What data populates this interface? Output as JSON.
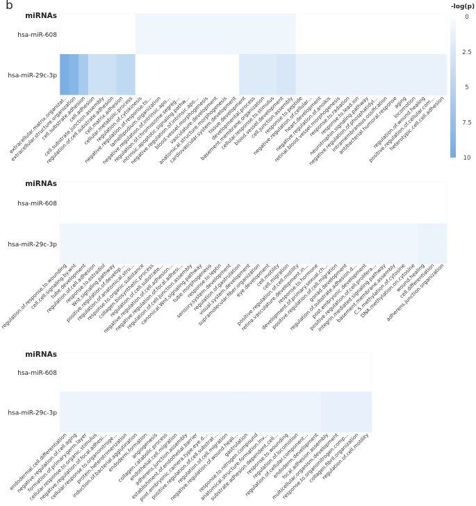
{
  "panel_label": "b",
  "colors": {
    "low": "#f3f8fd",
    "high": "#74abe2",
    "zero": "#ffffff"
  },
  "chart_data": [
    {
      "type": "heatmap",
      "row_header": "miRNAs",
      "rows": [
        "hsa-miR-608",
        "hsa-miR-29c-3p"
      ],
      "colorbar": {
        "title": "-log(p)",
        "ticks": [
          "0",
          "2.5",
          "5",
          "7.5",
          "10"
        ],
        "range": [
          0,
          10
        ]
      },
      "categories": [
        "extracellular.matrix.organizat..",
        "extracellular.structure.organization",
        "cell.substrate.adhesion",
        "cell.adhesion",
        "cell.substrate.junction.assembly",
        "regulation.of.cell.substrate.adhesion",
        "cell.matrix.adhesion",
        "cellular.metabolic.process",
        "regulation.of.cytokinesis",
        "negative.regulation.of.response.to...",
        "lamellipodium.organization",
        "negative.regulation.of.intrinsic.apo...",
        "regulation.of.chromosome.segreg...",
        "intrinsic.apoptotic.signaling.pathw...",
        "negative.regulation.of.intrinsic.apo...",
        "blood.vessel.morphogenesis",
        "vasculature.development",
        "anatomical.structure.morphogenesis",
        "cardiovascular.system.development",
        "tissue.development",
        "developmental.process",
        "basement.membrane.organization",
        "cellular.response.to.stimulus",
        "blood.vessel.development",
        "cell.junction.assembly",
        "response.to.peptide",
        "negative.regulation.of.cellular...",
        "heart.development",
        "negative.regulation.of.anoikis",
        "retinal.blood.vessel.morphogenesis",
        "response.to.radiation",
        "response.to.lead.ion",
        "neurotrophin.signaling.pathway",
        "negative.regulation.of.phosphatidyl...",
        "intramembranous.ossification",
        "antibacterial.humoral.response",
        "aging",
        "locomotion",
        "regulation.of.wound.healing",
        "positive.regulation.of.cellular.com...",
        "heterotypic.cell.cell.adhesion"
      ],
      "values": [
        [
          0,
          0,
          0,
          0,
          0,
          0,
          0,
          0,
          0.3,
          0.3,
          0.3,
          0.3,
          0.3,
          0.3,
          0.3,
          0.3,
          0.3,
          0.3,
          0.3,
          0.3,
          0.3,
          0.3,
          0.3,
          0.3,
          0.3,
          0,
          0,
          0,
          0,
          0,
          0,
          0,
          0,
          0,
          0,
          0,
          0,
          0,
          0,
          0,
          0
        ],
        [
          9.5,
          8.5,
          6,
          3,
          3,
          3,
          4,
          4,
          0,
          0,
          0,
          0,
          0,
          0,
          0,
          0,
          0,
          0,
          0,
          1.7,
          1.7,
          1.7,
          1.7,
          2.2,
          2.2,
          0.8,
          0.8,
          0.8,
          0.8,
          0.8,
          0.8,
          0.8,
          0.8,
          0.8,
          0.8,
          0.8,
          0.8,
          0.8,
          0.8,
          0.8,
          0.8
        ]
      ]
    },
    {
      "type": "heatmap",
      "row_header": "miRNAs",
      "rows": [
        "hsa-miR-608",
        "hsa-miR-29c-3p"
      ],
      "categories": [
        "regulation.of.response.to.wounding",
        "cell.cell.signaling.by.wnt",
        "tube.development",
        "regulation.of.cell.adhesion",
        "response.to.estradiol",
        "Wnt.signaling.pathway",
        "positive.regulation.of.develop...",
        "regulation.of.anatomical.stru...",
        "response.to.organic.substance",
        "collagen.biosynthetic.process",
        "regulation.of.cell.substrate...",
        "negative.regulation.of.cell.adhesion...",
        "negative.regulation.of.focal.adhesi...",
        "regulation.of.cell.junction.assembly",
        "canonical.Wnt.signaling.pathway",
        "tube.morphogenesis",
        "response.to.leptin",
        "sensory.system.development",
        "regulation.of.gastrulation",
        "visual.system.development",
        "supramolecular.fiber.organization",
        "eye.development",
        "cell.motility",
        "cell.migration",
        "positive.regulation.of.cell.motility",
        "retina.vasculature.development.in...",
        "response.to.hormone",
        "development.of.primary.sexual.ch...",
        "positive.regulation.of.cell.migration",
        "gonad.development",
        "regulation.of.substrate.adhesion.d...",
        "post.embryonic.development",
        "positive.regulation.of.cell.prolifera...",
        "integrin.mediated.signaling.pathway",
        "basement.membrane.assembly",
        "C.5.methylation.of.cytosine",
        "DNA.methylation.on.cytosine",
        "wound.healing",
        "cell.differentiation",
        "adherens.junction.organization"
      ],
      "values": [
        [
          0,
          0,
          0,
          0,
          0,
          0,
          0,
          0,
          0,
          0,
          0,
          0,
          0,
          0,
          0,
          0,
          0,
          0,
          0,
          0,
          0,
          0,
          0,
          0,
          0,
          0,
          0,
          0,
          0,
          0,
          0,
          0,
          0,
          0,
          0,
          0,
          0,
          0,
          0,
          0
        ],
        [
          0.3,
          0.3,
          0.3,
          0.3,
          0.3,
          0.3,
          0.3,
          0.3,
          0.3,
          0.3,
          0.3,
          0.3,
          0.3,
          0.3,
          0.3,
          0.3,
          0.3,
          0.3,
          0.3,
          0.3,
          0.3,
          0.3,
          0.3,
          0.3,
          0.3,
          0.3,
          0.3,
          0.3,
          0.3,
          0.3,
          0.3,
          0.3,
          0.3,
          0.3,
          0.3,
          0.3,
          0.3,
          0.6,
          0.6,
          0.6
        ]
      ]
    },
    {
      "type": "heatmap",
      "row_header": "miRNAs",
      "rows": [
        "hsa-miR-608",
        "hsa-miR-29c-3p"
      ],
      "categories": [
        "endodermal.cell.differentiation",
        "negative.regulation.of.cell.aging",
        "formation.of.primary.germ.layer",
        "cellular.response.to.organic.stimulus",
        "negative.regulation.of.focal.adhesi...",
        "cellular.response.to.organonitroge...",
        "protein.heterotrimerization",
        "induction.of.bacterial.agglutination",
        "endoderm.formation",
        "angiogenesis",
        "collagen.catabolic.process",
        "endothelial.cell.migration",
        "adherens.junction.assembly",
        "establishment.of.endothelial.barrier",
        "post.embryonic.camera.type.eye.d...",
        "positive.regulation.of.cell.substrat...",
        "regulation.of.cell.migration",
        "negative.regulation.of.wound.heali...",
        "gastrulation",
        "response.to.nitrogen.compound",
        "anatomical.structure.formation.inv...",
        "substrate.adhesion.dependent.cell...",
        "response.to.wounding",
        "regulation.of.locomotion",
        "regulation.of.cellular.component...",
        "endoderm.development",
        "focal.adhesion.assembly",
        "multicellular.organism.development",
        "response.to.organonitrogen.comp...",
        "collagen.fibril.organization",
        "regulation.of.cell.motility"
      ],
      "values": [
        [
          0,
          0,
          0,
          0,
          0,
          0,
          0,
          0,
          0,
          0,
          0,
          0,
          0,
          0,
          0,
          0,
          0,
          0,
          0,
          0,
          0,
          0,
          0,
          0,
          0,
          0,
          0,
          0,
          0,
          0,
          0
        ],
        [
          0.5,
          0.5,
          0.5,
          0.5,
          0.5,
          0.5,
          0.5,
          0.5,
          0.5,
          0.5,
          0.5,
          0.5,
          0.5,
          0.5,
          0.5,
          0.5,
          0.5,
          0.5,
          0.5,
          0.5,
          0.5,
          0.5,
          0.5,
          0.5,
          0.5,
          0.5,
          0.9,
          0.9,
          0.9,
          0.9,
          0.9
        ]
      ]
    }
  ]
}
